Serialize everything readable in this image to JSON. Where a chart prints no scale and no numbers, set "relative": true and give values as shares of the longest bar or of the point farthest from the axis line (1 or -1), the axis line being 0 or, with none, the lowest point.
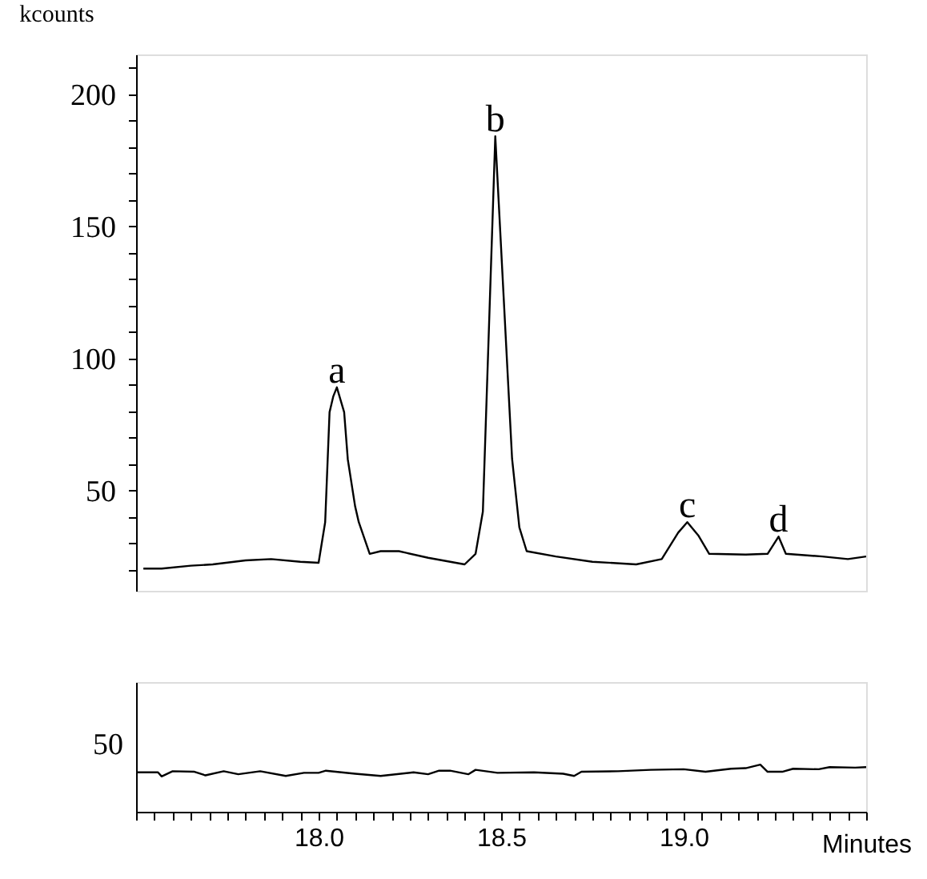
{
  "chart_data": [
    {
      "type": "line",
      "ylabel": "kcounts",
      "tick_labels": "y",
      "grid": false,
      "marker": "none",
      "line_style": "solid",
      "color": "#000000",
      "xlim": [
        17.5,
        19.5
      ],
      "ylim": [
        12,
        215
      ],
      "yticks": [
        {
          "value": 20,
          "label": null
        },
        {
          "value": 30,
          "label": null
        },
        {
          "value": 40,
          "label": null
        },
        50,
        {
          "value": 60,
          "label": null
        },
        {
          "value": 70,
          "label": null
        },
        {
          "value": 80,
          "label": null
        },
        {
          "value": 90,
          "label": null
        },
        100,
        {
          "value": 110,
          "label": null
        },
        {
          "value": 120,
          "label": null
        },
        {
          "value": 130,
          "label": null
        },
        {
          "value": 140,
          "label": null
        },
        150,
        {
          "value": 160,
          "label": null
        },
        {
          "value": 170,
          "label": null
        },
        {
          "value": 180,
          "label": null
        },
        {
          "value": 190,
          "label": null
        },
        200,
        {
          "value": 210,
          "label": null
        }
      ],
      "x": [
        17.52,
        17.57,
        17.65,
        17.71,
        17.8,
        17.87,
        17.95,
        18.0,
        18.018,
        18.03,
        18.04,
        18.05,
        18.07,
        18.08,
        18.1,
        18.11,
        18.14,
        18.17,
        18.22,
        18.3,
        18.4,
        18.43,
        18.45,
        18.484,
        18.53,
        18.55,
        18.57,
        18.65,
        18.75,
        18.87,
        18.94,
        18.985,
        19.01,
        19.04,
        19.07,
        19.17,
        19.23,
        19.26,
        19.28,
        19.38,
        19.45,
        19.5
      ],
      "values": [
        20.4,
        20.4,
        21.5,
        22,
        23.5,
        24,
        23,
        22.6,
        38,
        79.6,
        85.5,
        89,
        79.6,
        61.7,
        44,
        38,
        26,
        27,
        27,
        24.5,
        22,
        26,
        42,
        184,
        62,
        36,
        27,
        25,
        23,
        22,
        24,
        34,
        38,
        33,
        26,
        25.7,
        26,
        32.5,
        26,
        25,
        24,
        25
      ],
      "annotations": [
        {
          "text": "a",
          "x": 18.05,
          "y": 89
        },
        {
          "text": "b",
          "x": 18.484,
          "y": 184
        },
        {
          "text": "c",
          "x": 19.01,
          "y": 38
        },
        {
          "text": "d",
          "x": 19.26,
          "y": 32.5
        }
      ]
    },
    {
      "type": "line",
      "xlabel": "Minutes",
      "grid": false,
      "marker": "none",
      "line_style": "solid",
      "color": "#000000",
      "xlim": [
        17.5,
        19.5
      ],
      "xticks": [
        {
          "value": 17.5,
          "label": null
        },
        {
          "value": 17.55,
          "label": null
        },
        {
          "value": 17.6,
          "label": null
        },
        {
          "value": 17.65,
          "label": null
        },
        {
          "value": 17.7,
          "label": null
        },
        {
          "value": 17.75,
          "label": null
        },
        {
          "value": 17.8,
          "label": null
        },
        {
          "value": 17.85,
          "label": null
        },
        {
          "value": 17.9,
          "label": null
        },
        {
          "value": 17.95,
          "label": null
        },
        {
          "value": 18,
          "label": "18.0"
        },
        {
          "value": 18.05,
          "label": null
        },
        {
          "value": 18.1,
          "label": null
        },
        {
          "value": 18.15,
          "label": null
        },
        {
          "value": 18.2,
          "label": null
        },
        {
          "value": 18.25,
          "label": null
        },
        {
          "value": 18.3,
          "label": null
        },
        {
          "value": 18.35,
          "label": null
        },
        {
          "value": 18.4,
          "label": null
        },
        {
          "value": 18.45,
          "label": null
        },
        18.5,
        {
          "value": 18.55,
          "label": null
        },
        {
          "value": 18.6,
          "label": null
        },
        {
          "value": 18.65,
          "label": null
        },
        {
          "value": 18.7,
          "label": null
        },
        {
          "value": 18.75,
          "label": null
        },
        {
          "value": 18.8,
          "label": null
        },
        {
          "value": 18.85,
          "label": null
        },
        {
          "value": 18.9,
          "label": null
        },
        {
          "value": 18.95,
          "label": null
        },
        {
          "value": 19,
          "label": "19.0"
        },
        {
          "value": 19.05,
          "label": null
        },
        {
          "value": 19.1,
          "label": null
        },
        {
          "value": 19.15,
          "label": null
        },
        {
          "value": 19.2,
          "label": null
        },
        {
          "value": 19.25,
          "label": null
        },
        {
          "value": 19.3,
          "label": null
        },
        {
          "value": 19.35,
          "label": null
        },
        {
          "value": 19.4,
          "label": null
        },
        {
          "value": 19.45,
          "label": null
        },
        {
          "value": 19.5,
          "label": null
        }
      ],
      "relative": true,
      "annotations": [
        "50"
      ],
      "x": [
        17.5,
        17.56,
        17.57,
        17.6,
        17.66,
        17.69,
        17.74,
        17.78,
        17.84,
        17.91,
        17.96,
        18.0,
        18.02,
        18.1,
        18.17,
        18.26,
        18.3,
        18.33,
        18.36,
        18.41,
        18.43,
        18.49,
        18.59,
        18.67,
        18.7,
        18.72,
        18.82,
        18.91,
        19.0,
        19.06,
        19.13,
        19.17,
        19.21,
        19.23,
        19.27,
        19.3,
        19.37,
        19.4,
        19.47,
        19.5
      ],
      "values": [
        0.836,
        0.836,
        0.749,
        0.86,
        0.848,
        0.772,
        0.86,
        0.795,
        0.86,
        0.76,
        0.825,
        0.825,
        0.871,
        0.807,
        0.76,
        0.836,
        0.795,
        0.871,
        0.871,
        0.795,
        0.889,
        0.825,
        0.836,
        0.807,
        0.76,
        0.848,
        0.86,
        0.889,
        0.901,
        0.848,
        0.912,
        0.924,
        1,
        0.848,
        0.848,
        0.912,
        0.901,
        0.947,
        0.936,
        0.947
      ]
    }
  ]
}
